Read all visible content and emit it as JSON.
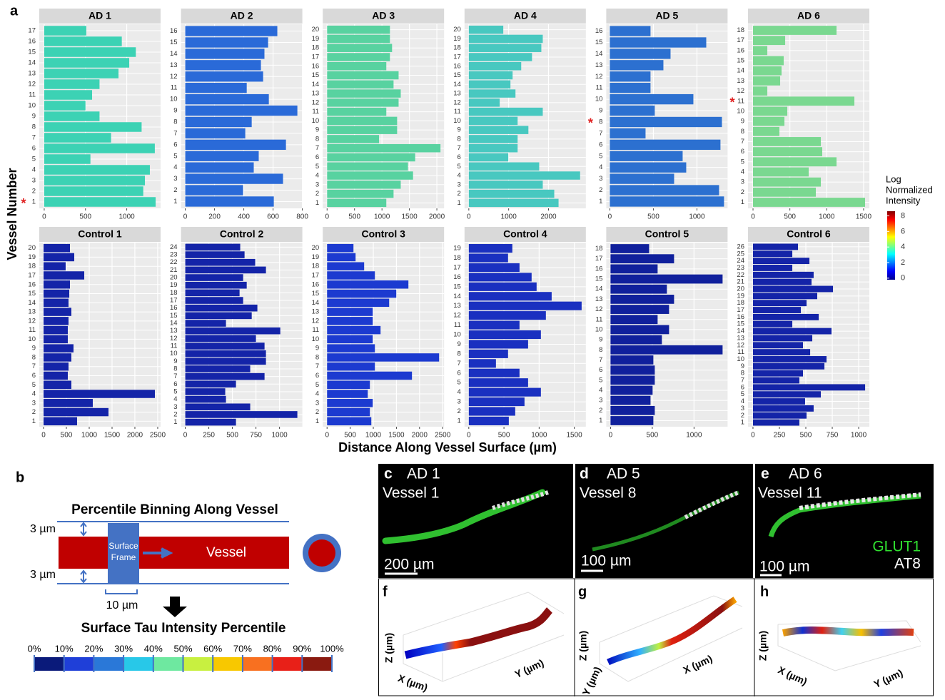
{
  "chart_data": [
    {
      "type": "bar",
      "orientation": "horizontal",
      "title": "AD 1",
      "categories": [
        "1",
        "2",
        "3",
        "4",
        "5",
        "6",
        "7",
        "8",
        "9",
        "10",
        "11",
        "12",
        "13",
        "14",
        "15",
        "16",
        "17"
      ],
      "values": [
        1350,
        1200,
        1220,
        1280,
        560,
        1340,
        810,
        1180,
        670,
        500,
        580,
        670,
        900,
        1030,
        1110,
        940,
        510
      ],
      "xlim": [
        -60,
        1410
      ],
      "xticks": [
        0,
        500,
        1000
      ],
      "color": "#3cd2b4",
      "annotations": [
        {
          "text": "*",
          "category": 0,
          "color": "#e02020"
        }
      ]
    },
    {
      "type": "bar",
      "orientation": "horizontal",
      "title": "AD 2",
      "categories": [
        "1",
        "2",
        "3",
        "4",
        "5",
        "6",
        "7",
        "8",
        "9",
        "10",
        "11",
        "12",
        "13",
        "14",
        "15",
        "16"
      ],
      "values": [
        605,
        395,
        668,
        468,
        502,
        688,
        410,
        454,
        766,
        571,
        420,
        532,
        517,
        541,
        566,
        629
      ],
      "xlim": [
        -29,
        800
      ],
      "xticks": [
        0,
        200,
        400,
        600,
        800
      ],
      "color": "#2a6ad8"
    },
    {
      "type": "bar",
      "orientation": "horizontal",
      "title": "AD 3",
      "categories": [
        "1",
        "2",
        "3",
        "4",
        "5",
        "6",
        "7",
        "8",
        "9",
        "10",
        "11",
        "12",
        "13",
        "14",
        "15",
        "16",
        "17",
        "18",
        "19",
        "20"
      ],
      "values": [
        1079,
        1211,
        1342,
        1566,
        1474,
        1605,
        2066,
        947,
        1276,
        1276,
        1079,
        1303,
        1342,
        1211,
        1303,
        1079,
        1145,
        1184,
        1145,
        1145
      ],
      "xlim": [
        -79,
        2132
      ],
      "xticks": [
        0,
        500,
        1000,
        1500,
        2000
      ],
      "color": "#58d2a0"
    },
    {
      "type": "bar",
      "orientation": "horizontal",
      "title": "AD 4",
      "categories": [
        "1",
        "2",
        "3",
        "4",
        "5",
        "6",
        "7",
        "8",
        "9",
        "10",
        "11",
        "12",
        "13",
        "14",
        "15",
        "16",
        "17",
        "18",
        "19",
        "20"
      ],
      "values": [
        2252,
        2144,
        1856,
        2793,
        1766,
        991,
        1225,
        1225,
        1495,
        1225,
        1856,
        775,
        1171,
        1045,
        1099,
        1315,
        1586,
        1820,
        1856,
        865
      ],
      "xlim": [
        -108,
        2937
      ],
      "xticks": [
        0,
        1000,
        2000
      ],
      "color": "#48c8c0"
    },
    {
      "type": "bar",
      "orientation": "horizontal",
      "title": "AD 5",
      "categories": [
        "1",
        "2",
        "3",
        "4",
        "5",
        "6",
        "7",
        "8",
        "9",
        "10",
        "11",
        "12",
        "13",
        "14",
        "15",
        "16"
      ],
      "values": [
        1311,
        1254,
        738,
        877,
        836,
        1270,
        410,
        1287,
        516,
        959,
        467,
        467,
        615,
        697,
        1107,
        467
      ],
      "xlim": [
        -41,
        1352
      ],
      "xticks": [
        0,
        500,
        1000
      ],
      "color": "#2c70d0",
      "annotations": [
        {
          "text": "*",
          "category": 7,
          "color": "#e02020"
        }
      ]
    },
    {
      "type": "bar",
      "orientation": "horizontal",
      "title": "AD 6",
      "categories": [
        "1",
        "2",
        "3",
        "4",
        "5",
        "6",
        "7",
        "8",
        "9",
        "10",
        "11",
        "12",
        "13",
        "14",
        "15",
        "16",
        "17",
        "18"
      ],
      "values": [
        1520,
        852,
        920,
        755,
        1133,
        939,
        920,
        358,
        426,
        465,
        1375,
        194,
        368,
        387,
        416,
        194,
        436,
        1133
      ],
      "xlim": [
        -68,
        1578
      ],
      "xticks": [
        0,
        500,
        1000,
        1500
      ],
      "color": "#7ad890",
      "annotations": [
        {
          "text": "*",
          "category": 10,
          "color": "#e02020"
        }
      ]
    },
    {
      "type": "bar",
      "orientation": "horizontal",
      "title": "Control 1",
      "categories": [
        "1",
        "2",
        "3",
        "4",
        "5",
        "6",
        "7",
        "8",
        "9",
        "10",
        "11",
        "12",
        "13",
        "14",
        "15",
        "16",
        "17",
        "18",
        "19",
        "20"
      ],
      "values": [
        734,
        1422,
        1078,
        2438,
        609,
        531,
        547,
        609,
        656,
        531,
        531,
        547,
        609,
        547,
        563,
        578,
        891,
        484,
        672,
        578
      ],
      "xlim": [
        -94,
        2563
      ],
      "xticks": [
        0,
        500,
        1000,
        1500,
        2000,
        2500
      ],
      "color": "#1424a8"
    },
    {
      "type": "bar",
      "orientation": "horizontal",
      "title": "Control 2",
      "categories": [
        "1",
        "2",
        "3",
        "4",
        "5",
        "6",
        "7",
        "8",
        "9",
        "10",
        "11",
        "12",
        "13",
        "14",
        "15",
        "16",
        "17",
        "18",
        "19",
        "20",
        "21",
        "22",
        "23",
        "24"
      ],
      "values": [
        538,
        1189,
        689,
        432,
        424,
        538,
        841,
        689,
        856,
        856,
        841,
        750,
        1008,
        432,
        705,
        765,
        614,
        576,
        652,
        614,
        856,
        742,
        629,
        583
      ],
      "xlim": [
        -45,
        1242
      ],
      "xticks": [
        0,
        250,
        500,
        750,
        1000
      ],
      "color": "#1424a8"
    },
    {
      "type": "bar",
      "orientation": "horizontal",
      "title": "Control 3",
      "categories": [
        "1",
        "2",
        "3",
        "4",
        "5",
        "6",
        "7",
        "8",
        "9",
        "10",
        "11",
        "12",
        "13",
        "14",
        "15",
        "16",
        "17",
        "18",
        "19",
        "20"
      ],
      "values": [
        957,
        926,
        988,
        880,
        926,
        1836,
        1034,
        2423,
        1034,
        988,
        1157,
        988,
        988,
        1343,
        1497,
        1759,
        1034,
        802,
        617,
        571
      ],
      "xlim": [
        -93,
        2531
      ],
      "xticks": [
        0,
        500,
        1000,
        1500,
        2000,
        2500
      ],
      "color": "#1c3ad0"
    },
    {
      "type": "bar",
      "orientation": "horizontal",
      "title": "Control 4",
      "categories": [
        "1",
        "2",
        "3",
        "4",
        "5",
        "6",
        "7",
        "8",
        "9",
        "10",
        "11",
        "12",
        "13",
        "14",
        "15",
        "16",
        "17",
        "18",
        "19"
      ],
      "values": [
        569,
        660,
        792,
        1025,
        843,
        721,
        386,
        558,
        843,
        1025,
        721,
        1096,
        1604,
        1178,
        964,
        893,
        721,
        558,
        619
      ],
      "xlim": [
        -61,
        1664
      ],
      "xticks": [
        0,
        500,
        1000,
        1500
      ],
      "color": "#1a30c0"
    },
    {
      "type": "bar",
      "orientation": "horizontal",
      "title": "Control 5",
      "categories": [
        "1",
        "2",
        "3",
        "4",
        "5",
        "6",
        "7",
        "8",
        "9",
        "10",
        "11",
        "12",
        "13",
        "14",
        "15",
        "16",
        "17",
        "18"
      ],
      "values": [
        513,
        530,
        479,
        504,
        530,
        530,
        513,
        1342,
        615,
        701,
        564,
        701,
        761,
        675,
        1342,
        564,
        761,
        462
      ],
      "xlim": [
        -51,
        1402
      ],
      "xticks": [
        0,
        500,
        1000
      ],
      "color": "#10209c"
    },
    {
      "type": "bar",
      "orientation": "horizontal",
      "title": "Control 6",
      "categories": [
        "1",
        "2",
        "3",
        "4",
        "5",
        "6",
        "7",
        "8",
        "9",
        "10",
        "11",
        "12",
        "13",
        "14",
        "15",
        "16",
        "17",
        "18",
        "19",
        "20",
        "21",
        "22",
        "23",
        "24",
        "25",
        "26"
      ],
      "values": [
        439,
        507,
        574,
        493,
        642,
        1061,
        439,
        473,
        676,
        696,
        541,
        473,
        561,
        743,
        372,
        622,
        453,
        507,
        608,
        757,
        554,
        574,
        372,
        534,
        372,
        426
      ],
      "xlim": [
        -47,
        1101
      ],
      "xticks": [
        0,
        250,
        500,
        750,
        1000
      ],
      "color": "#1424a8"
    }
  ],
  "figure": {
    "panel_a": "a",
    "y_label": "Vessel Number",
    "x_label": "Distance Along Vessel Surface (µm)",
    "legend": {
      "title_lines": [
        "Log",
        "Normalized",
        "Intensity"
      ],
      "ticks": [
        0,
        2,
        4,
        6,
        8
      ],
      "lim": [
        -0.2,
        8.6
      ],
      "colors": [
        "#00008f",
        "#0000ff",
        "#0080ff",
        "#00ffff",
        "#80ff80",
        "#ffff00",
        "#ff8000",
        "#ff0000",
        "#800000"
      ]
    },
    "panel_b": {
      "letter": "b",
      "title": "Percentile Binning Along Vessel",
      "margin_top": "3 µm",
      "margin_bottom": "3 µm",
      "frame_lines": [
        "Surface",
        "Frame"
      ],
      "vessel": "Vessel",
      "frame_width": "10 µm",
      "scale_title": "Surface Tau Intensity Percentile",
      "percentiles": [
        "0%",
        "10%",
        "20%",
        "30%",
        "40%",
        "50%",
        "60%",
        "70%",
        "80%",
        "90%",
        "100%"
      ],
      "colors": [
        "#0a1a7a",
        "#1f3fd8",
        "#2a78d8",
        "#28c8e8",
        "#6ee8a0",
        "#c8f040",
        "#f8c800",
        "#f87020",
        "#e82018",
        "#8a1a10"
      ]
    },
    "images": [
      {
        "letter": "c",
        "case": "AD 1",
        "vessel": "Vessel 1",
        "scale": "200 µm"
      },
      {
        "letter": "d",
        "case": "AD 5",
        "vessel": "Vessel 8",
        "scale": "100 µm"
      },
      {
        "letter": "e",
        "case": "AD 6",
        "vessel": "Vessel 11",
        "scale": "100 µm",
        "stain_1": "GLUT1",
        "stain_2": "AT8"
      }
    ],
    "plots3d": [
      {
        "letter": "f",
        "z": "Z (µm)",
        "x": "X (µm)",
        "y": "Y (µm)"
      },
      {
        "letter": "g",
        "z": "Z (µm)",
        "x": "X (µm)",
        "y": "Y (µm)"
      },
      {
        "letter": "h",
        "z": "Z (µm)",
        "x": "X (µm)",
        "y": "Y (µm)"
      }
    ]
  }
}
